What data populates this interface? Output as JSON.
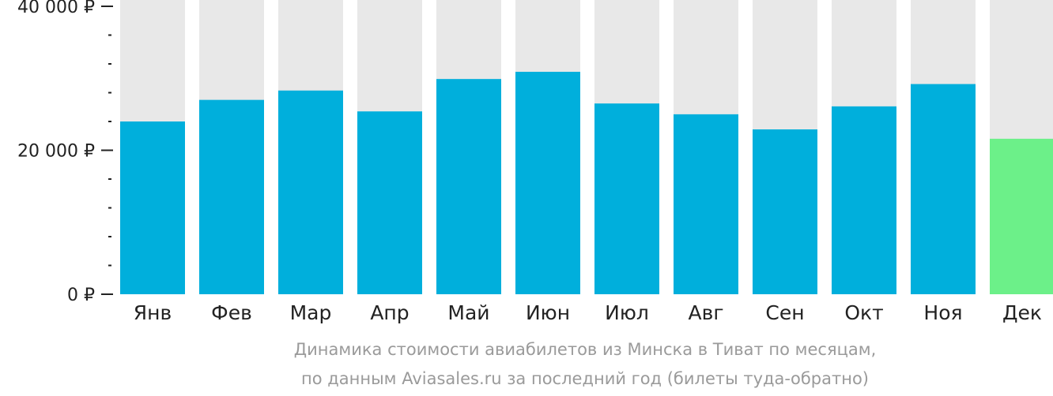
{
  "chart_data": {
    "type": "bar",
    "categories": [
      "Янв",
      "Фев",
      "Мар",
      "Апр",
      "Май",
      "Июн",
      "Июл",
      "Авг",
      "Сен",
      "Окт",
      "Ноя",
      "Дек"
    ],
    "values": [
      24000,
      27000,
      28300,
      25400,
      29900,
      30900,
      26500,
      25000,
      22900,
      26100,
      29200,
      21600
    ],
    "ylim": [
      0,
      40000
    ],
    "y_ticks": [
      {
        "value": 0,
        "label": "0 ₽"
      },
      {
        "value": 20000,
        "label": "20 000 ₽"
      },
      {
        "value": 40000,
        "label": "40 000 ₽"
      }
    ],
    "y_minor_step": 4000,
    "highlight_index": 11,
    "colors": {
      "bar": "#00afdc",
      "highlight": "#6cf089",
      "background_bar": "#e8e8e8",
      "axis": "#222222",
      "tick_label": "#222222"
    }
  },
  "caption": {
    "line1": "Динамика стоимости авиабилетов из Минска в Тиват по месяцам,",
    "line2": "по данным Aviasales.ru за последний год (билеты туда-обратно)"
  }
}
